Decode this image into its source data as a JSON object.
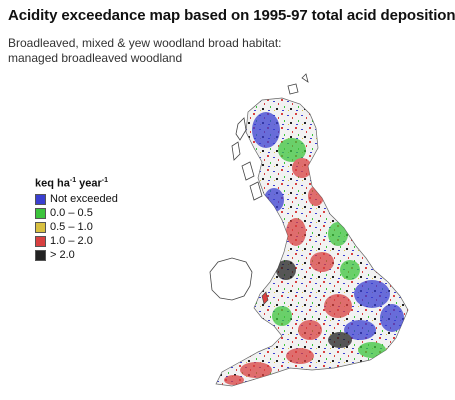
{
  "title": "Acidity exceedance map based on 1995-97 total acid deposition",
  "subtitle": "Broadleaved, mixed & yew woodland broad habitat: managed broadleaved woodland",
  "legend": {
    "title_unit": "keq ha",
    "title_exp1": "-1",
    "title_mid": " year",
    "title_exp2": "-1",
    "items": [
      {
        "label": "Not exceeded",
        "color": "#3a3fd0"
      },
      {
        "label": "0.0 – 0.5",
        "color": "#3cc43c"
      },
      {
        "label": "0.5 – 1.0",
        "color": "#d8c040"
      },
      {
        "label": "1.0 – 2.0",
        "color": "#d84040"
      },
      {
        "label": "> 2.0",
        "color": "#222222"
      }
    ]
  }
}
